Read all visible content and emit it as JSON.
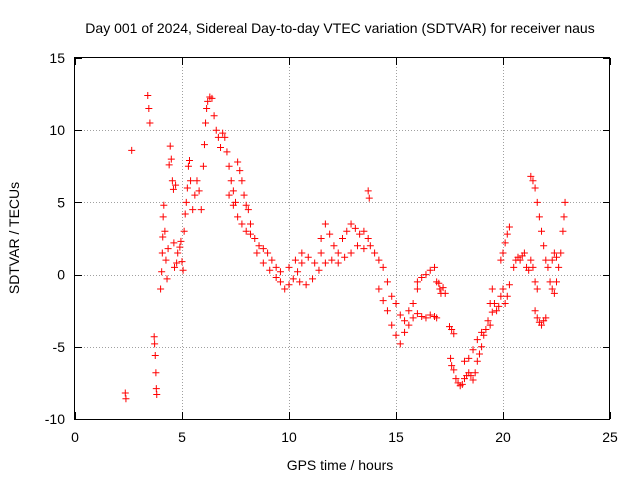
{
  "chart_data": {
    "type": "scatter",
    "title": "Day 001 of 2024, Sidereal Day-to-day VTEC variation (SDTVAR) for receiver naus",
    "xlabel": "GPS time / hours",
    "ylabel": "SDTVAR / TECUs",
    "xlim": [
      0,
      25
    ],
    "ylim": [
      -10,
      15
    ],
    "xticks": [
      0,
      5,
      10,
      15,
      20,
      25
    ],
    "yticks": [
      -10,
      -5,
      0,
      5,
      10,
      15
    ],
    "grid": true,
    "marker": "+",
    "color": "#ff0000",
    "series": [
      {
        "name": "SDTVAR",
        "points": [
          [
            2.35,
            -8.2
          ],
          [
            2.38,
            -8.6
          ],
          [
            2.65,
            8.6
          ],
          [
            3.4,
            12.4
          ],
          [
            3.45,
            11.5
          ],
          [
            3.5,
            10.5
          ],
          [
            3.7,
            -4.3
          ],
          [
            3.72,
            -4.8
          ],
          [
            3.75,
            -5.6
          ],
          [
            3.78,
            -6.8
          ],
          [
            3.8,
            -7.9
          ],
          [
            3.82,
            -8.3
          ],
          [
            4.0,
            -1.0
          ],
          [
            4.05,
            0.2
          ],
          [
            4.08,
            1.5
          ],
          [
            4.1,
            2.6
          ],
          [
            4.12,
            4.0
          ],
          [
            4.15,
            4.8
          ],
          [
            4.2,
            3.0
          ],
          [
            4.25,
            1.0
          ],
          [
            4.3,
            -0.3
          ],
          [
            4.35,
            1.8
          ],
          [
            4.4,
            7.6
          ],
          [
            4.45,
            8.9
          ],
          [
            4.5,
            8.0
          ],
          [
            4.55,
            6.5
          ],
          [
            4.6,
            5.9
          ],
          [
            4.62,
            2.2
          ],
          [
            4.65,
            0.5
          ],
          [
            4.7,
            6.2
          ],
          [
            4.75,
            0.8
          ],
          [
            4.8,
            1.5
          ],
          [
            4.9,
            1.9
          ],
          [
            4.95,
            2.3
          ],
          [
            5.0,
            0.9
          ],
          [
            5.05,
            0.3
          ],
          [
            5.1,
            3.0
          ],
          [
            5.15,
            4.2
          ],
          [
            5.2,
            5.0
          ],
          [
            5.25,
            6.0
          ],
          [
            5.3,
            7.5
          ],
          [
            5.35,
            7.9
          ],
          [
            5.4,
            6.5
          ],
          [
            5.5,
            4.5
          ],
          [
            5.6,
            5.5
          ],
          [
            5.7,
            6.5
          ],
          [
            5.8,
            5.8
          ],
          [
            5.9,
            4.5
          ],
          [
            6.0,
            7.5
          ],
          [
            6.05,
            9.0
          ],
          [
            6.1,
            10.5
          ],
          [
            6.15,
            11.5
          ],
          [
            6.2,
            12.0
          ],
          [
            6.3,
            12.3
          ],
          [
            6.4,
            12.2
          ],
          [
            6.5,
            11.0
          ],
          [
            6.6,
            10.0
          ],
          [
            6.7,
            9.5
          ],
          [
            6.8,
            8.8
          ],
          [
            6.9,
            9.8
          ],
          [
            7.0,
            9.5
          ],
          [
            7.1,
            8.5
          ],
          [
            7.2,
            7.5
          ],
          [
            7.3,
            6.5
          ],
          [
            7.4,
            5.8
          ],
          [
            7.5,
            5.0
          ],
          [
            7.6,
            7.8
          ],
          [
            7.7,
            7.2
          ],
          [
            7.8,
            6.5
          ],
          [
            7.9,
            5.5
          ],
          [
            8.0,
            4.8
          ],
          [
            8.1,
            4.5
          ],
          [
            8.2,
            3.5
          ],
          [
            7.2,
            5.5
          ],
          [
            7.4,
            4.8
          ],
          [
            7.6,
            4.0
          ],
          [
            7.8,
            3.5
          ],
          [
            8.0,
            3.0
          ],
          [
            8.2,
            2.8
          ],
          [
            8.4,
            2.5
          ],
          [
            8.6,
            2.0
          ],
          [
            8.8,
            1.8
          ],
          [
            9.0,
            1.5
          ],
          [
            9.2,
            1.0
          ],
          [
            9.4,
            0.5
          ],
          [
            9.6,
            0.2
          ],
          [
            8.5,
            1.5
          ],
          [
            8.8,
            0.8
          ],
          [
            9.1,
            0.3
          ],
          [
            9.4,
            -0.2
          ],
          [
            9.6,
            -0.5
          ],
          [
            9.8,
            -1.0
          ],
          [
            10.0,
            -0.7
          ],
          [
            10.2,
            -0.3
          ],
          [
            10.4,
            0.2
          ],
          [
            10.6,
            0.8
          ],
          [
            10.0,
            0.5
          ],
          [
            10.3,
            1.0
          ],
          [
            10.6,
            1.5
          ],
          [
            10.9,
            1.2
          ],
          [
            11.2,
            0.8
          ],
          [
            11.5,
            1.5
          ],
          [
            10.5,
            -0.5
          ],
          [
            10.8,
            -0.7
          ],
          [
            11.1,
            -0.3
          ],
          [
            11.4,
            0.3
          ],
          [
            11.7,
            0.8
          ],
          [
            11.5,
            2.5
          ],
          [
            11.7,
            3.5
          ],
          [
            11.9,
            2.8
          ],
          [
            12.1,
            2.0
          ],
          [
            12.3,
            1.5
          ],
          [
            12.5,
            2.5
          ],
          [
            12.7,
            3.0
          ],
          [
            12.9,
            3.5
          ],
          [
            13.1,
            3.2
          ],
          [
            13.3,
            2.8
          ],
          [
            13.5,
            3.0
          ],
          [
            13.7,
            2.5
          ],
          [
            12.0,
            1.0
          ],
          [
            12.3,
            0.8
          ],
          [
            12.6,
            1.2
          ],
          [
            12.9,
            1.5
          ],
          [
            13.2,
            2.0
          ],
          [
            13.5,
            1.8
          ],
          [
            13.7,
            5.8
          ],
          [
            13.75,
            5.3
          ],
          [
            13.8,
            2.0
          ],
          [
            14.0,
            1.5
          ],
          [
            14.2,
            1.0
          ],
          [
            14.4,
            0.5
          ],
          [
            14.6,
            -0.5
          ],
          [
            14.8,
            -1.5
          ],
          [
            15.0,
            -2.0
          ],
          [
            15.2,
            -2.8
          ],
          [
            15.4,
            -3.2
          ],
          [
            15.6,
            -2.5
          ],
          [
            15.8,
            -2.0
          ],
          [
            16.0,
            -1.0
          ],
          [
            14.2,
            -1.0
          ],
          [
            14.4,
            -1.8
          ],
          [
            14.6,
            -2.5
          ],
          [
            14.8,
            -3.5
          ],
          [
            15.0,
            -4.2
          ],
          [
            15.2,
            -4.8
          ],
          [
            15.4,
            -4.0
          ],
          [
            15.6,
            -3.5
          ],
          [
            15.8,
            -3.0
          ],
          [
            16.0,
            -2.7
          ],
          [
            16.2,
            -2.9
          ],
          [
            16.4,
            -3.0
          ],
          [
            16.6,
            -2.8
          ],
          [
            16.8,
            -2.9
          ],
          [
            16.9,
            -3.0
          ],
          [
            16.0,
            -0.5
          ],
          [
            16.2,
            -0.2
          ],
          [
            16.4,
            0.0
          ],
          [
            16.6,
            0.3
          ],
          [
            16.8,
            0.5
          ],
          [
            16.9,
            -0.5
          ],
          [
            17.0,
            -0.6
          ],
          [
            17.05,
            -1.0
          ],
          [
            17.1,
            -1.3
          ],
          [
            17.2,
            -0.9
          ],
          [
            17.3,
            -1.3
          ],
          [
            17.5,
            -3.6
          ],
          [
            17.6,
            -3.8
          ],
          [
            17.7,
            -4.1
          ],
          [
            17.55,
            -5.8
          ],
          [
            17.6,
            -6.3
          ],
          [
            17.7,
            -6.6
          ],
          [
            17.8,
            -7.2
          ],
          [
            17.9,
            -7.5
          ],
          [
            18.0,
            -7.7
          ],
          [
            18.1,
            -7.6
          ],
          [
            18.2,
            -7.2
          ],
          [
            18.3,
            -7.0
          ],
          [
            18.4,
            -6.8
          ],
          [
            18.5,
            -7.0
          ],
          [
            18.6,
            -7.3
          ],
          [
            18.7,
            -6.8
          ],
          [
            18.8,
            -6.0
          ],
          [
            18.9,
            -5.5
          ],
          [
            19.0,
            -5.0
          ],
          [
            19.1,
            -4.2
          ],
          [
            19.2,
            -3.8
          ],
          [
            19.3,
            -3.2
          ],
          [
            19.4,
            -3.5
          ],
          [
            19.5,
            -2.6
          ],
          [
            19.4,
            -2.0
          ],
          [
            19.5,
            -1.0
          ],
          [
            18.2,
            -6.0
          ],
          [
            18.4,
            -5.8
          ],
          [
            18.6,
            -5.2
          ],
          [
            18.8,
            -4.5
          ],
          [
            19.0,
            -4.0
          ],
          [
            19.6,
            -2.0
          ],
          [
            19.7,
            -2.5
          ],
          [
            19.8,
            -2.2
          ],
          [
            19.9,
            -1.5
          ],
          [
            20.0,
            -1.0
          ],
          [
            20.1,
            -2.0
          ],
          [
            20.2,
            -1.5
          ],
          [
            20.3,
            -0.7
          ],
          [
            19.9,
            1.0
          ],
          [
            20.0,
            1.5
          ],
          [
            20.1,
            2.2
          ],
          [
            20.2,
            2.8
          ],
          [
            20.3,
            3.3
          ],
          [
            20.5,
            0.5
          ],
          [
            20.6,
            1.0
          ],
          [
            20.7,
            1.2
          ],
          [
            20.8,
            1.0
          ],
          [
            20.9,
            1.3
          ],
          [
            21.0,
            1.5
          ],
          [
            21.1,
            0.5
          ],
          [
            21.2,
            0.3
          ],
          [
            21.3,
            1.0
          ],
          [
            21.4,
            0.5
          ],
          [
            21.5,
            -0.5
          ],
          [
            21.6,
            -1.0
          ],
          [
            21.5,
            -2.5
          ],
          [
            21.6,
            -3.0
          ],
          [
            21.7,
            -3.3
          ],
          [
            21.8,
            -3.5
          ],
          [
            21.9,
            -3.2
          ],
          [
            22.0,
            -3.0
          ],
          [
            21.3,
            6.8
          ],
          [
            21.4,
            6.5
          ],
          [
            21.5,
            6.0
          ],
          [
            21.6,
            5.0
          ],
          [
            21.7,
            4.0
          ],
          [
            21.8,
            3.0
          ],
          [
            21.9,
            2.0
          ],
          [
            22.0,
            1.0
          ],
          [
            22.1,
            0.5
          ],
          [
            22.2,
            -0.5
          ],
          [
            22.3,
            -1.0
          ],
          [
            22.4,
            -1.3
          ],
          [
            22.5,
            -0.5
          ],
          [
            22.6,
            0.5
          ],
          [
            22.7,
            1.5
          ],
          [
            22.8,
            3.0
          ],
          [
            22.85,
            4.0
          ],
          [
            22.9,
            5.0
          ],
          [
            22.3,
            1.0
          ],
          [
            22.4,
            1.5
          ],
          [
            22.5,
            1.2
          ]
        ]
      }
    ]
  }
}
